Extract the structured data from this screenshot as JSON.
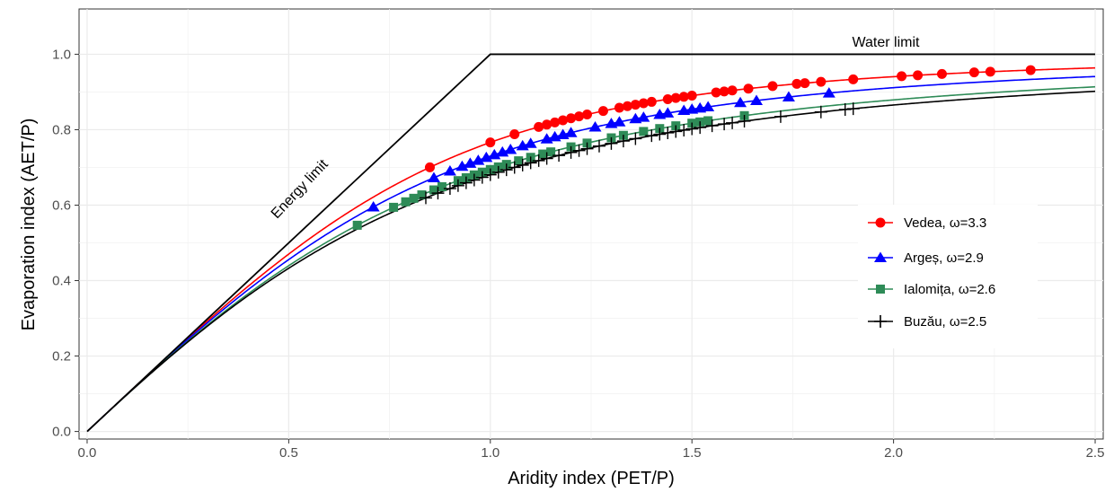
{
  "chart_data": {
    "type": "scatter",
    "xlabel": "Aridity index (PET/P)",
    "ylabel": "Evaporation index (AET/P)",
    "xlim": [
      -0.02,
      2.52
    ],
    "ylim": [
      -0.02,
      1.12
    ],
    "xticks": [
      0.0,
      0.5,
      1.0,
      1.5,
      2.0,
      2.5
    ],
    "xtick_labels": [
      "0.0",
      "0.5",
      "1.0",
      "1.5",
      "2.0",
      "2.5"
    ],
    "yticks": [
      0.0,
      0.2,
      0.4,
      0.6,
      0.8,
      1.0
    ],
    "ytick_labels": [
      "0.0",
      "0.2",
      "0.4",
      "0.6",
      "0.8",
      "1.0"
    ],
    "grid": true,
    "legend_position": "right",
    "limits": {
      "energy_label": "Energy limit",
      "water_label": "Water limit",
      "color": "#000000"
    },
    "series": [
      {
        "name": "Vedea, ω=3.3",
        "omega": 3.3,
        "color": "#ff0000",
        "marker": "circle",
        "x": [
          0.85,
          1.0,
          1.06,
          1.12,
          1.14,
          1.16,
          1.18,
          1.2,
          1.22,
          1.24,
          1.28,
          1.32,
          1.34,
          1.36,
          1.38,
          1.4,
          1.44,
          1.46,
          1.48,
          1.5,
          1.56,
          1.58,
          1.6,
          1.64,
          1.7,
          1.76,
          1.78,
          1.82,
          1.9,
          2.02,
          2.06,
          2.12,
          2.2,
          2.24,
          2.34
        ]
      },
      {
        "name": "Argeș, ω=2.9",
        "omega": 2.9,
        "color": "#0000ff",
        "marker": "triangle",
        "x": [
          0.71,
          0.86,
          0.9,
          0.93,
          0.95,
          0.97,
          0.99,
          1.01,
          1.03,
          1.05,
          1.08,
          1.1,
          1.14,
          1.16,
          1.18,
          1.2,
          1.26,
          1.3,
          1.32,
          1.36,
          1.38,
          1.42,
          1.44,
          1.48,
          1.5,
          1.52,
          1.54,
          1.62,
          1.66,
          1.74,
          1.84
        ]
      },
      {
        "name": "Ialomița, ω=2.6",
        "omega": 2.6,
        "color": "#2e8b57",
        "marker": "square",
        "x": [
          0.67,
          0.76,
          0.79,
          0.81,
          0.83,
          0.86,
          0.88,
          0.92,
          0.94,
          0.96,
          0.98,
          1.0,
          1.02,
          1.04,
          1.07,
          1.1,
          1.13,
          1.15,
          1.2,
          1.24,
          1.3,
          1.33,
          1.38,
          1.42,
          1.46,
          1.5,
          1.52,
          1.54,
          1.63
        ]
      },
      {
        "name": "Buzău, ω=2.5",
        "omega": 2.5,
        "color": "#000000",
        "marker": "plus",
        "x": [
          0.84,
          0.87,
          0.9,
          0.92,
          0.94,
          0.96,
          0.98,
          1.0,
          1.02,
          1.04,
          1.06,
          1.08,
          1.1,
          1.12,
          1.14,
          1.17,
          1.2,
          1.22,
          1.24,
          1.27,
          1.3,
          1.33,
          1.36,
          1.4,
          1.42,
          1.44,
          1.46,
          1.48,
          1.5,
          1.52,
          1.55,
          1.58,
          1.6,
          1.63,
          1.72,
          1.82,
          1.88,
          1.9
        ]
      }
    ]
  }
}
